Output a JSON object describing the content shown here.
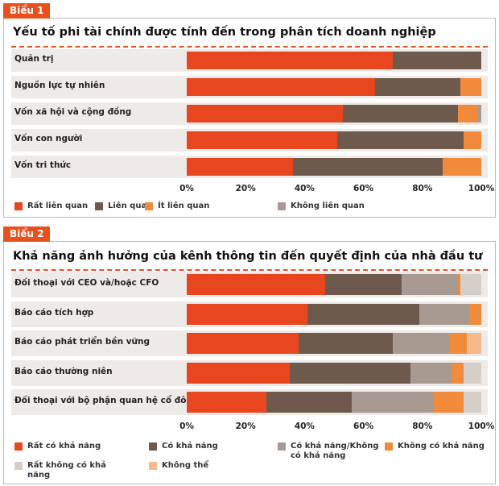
{
  "chart_data": [
    {
      "type": "bar",
      "stacked": true,
      "orientation": "horizontal",
      "badge": "Biểu 1",
      "title": "Yếu tố phi tài chính được tính đến trong phân tích doanh nghiệp",
      "categories": [
        "Quản trị",
        "Nguồn lực tự nhiên",
        "Vốn xã hội và cộng đồng",
        "Vốn con người",
        "Vốn tri thức"
      ],
      "series": [
        {
          "name": "Rất liên quan",
          "color": "#e8461e",
          "values": [
            70,
            64,
            53,
            51,
            36
          ]
        },
        {
          "name": "Liên quan",
          "color": "#6e5a4d",
          "values": [
            30,
            29,
            39,
            43,
            51
          ]
        },
        {
          "name": "Ít liên quan",
          "color": "#f28a3c",
          "values": [
            0,
            7,
            7,
            6,
            13
          ]
        },
        {
          "name": "Không liên quan",
          "color": "#a99a91",
          "values": [
            0,
            0,
            1,
            0,
            0
          ]
        }
      ],
      "xlim": [
        0,
        100
      ],
      "xticks": [
        {
          "value": 0,
          "label": "0%"
        },
        {
          "value": 20,
          "label": "20%"
        },
        {
          "value": 40,
          "label": "40%"
        },
        {
          "value": 60,
          "label": "60%"
        },
        {
          "value": 80,
          "label": "80%"
        },
        {
          "value": 100,
          "label": "100%"
        }
      ]
    },
    {
      "type": "bar",
      "stacked": true,
      "orientation": "horizontal",
      "badge": "Biểu 2",
      "title": "Khả năng ảnh hưởng của kênh thông tin đến quyết định của nhà đầu tư",
      "categories": [
        "Đối thoại với CEO và/hoặc CFO",
        "Báo cáo tích hợp",
        "Báo cáo phát triển bền vững",
        "Báo cáo thường niên",
        "Đối thoại với bộ phận quan hệ cổ đông"
      ],
      "series": [
        {
          "name": "Rất có khả năng",
          "color": "#e8461e",
          "values": [
            47,
            41,
            38,
            35,
            27
          ]
        },
        {
          "name": "Có khả năng",
          "color": "#6e5a4d",
          "values": [
            26,
            38,
            32,
            41,
            29
          ]
        },
        {
          "name": "Có khả năng/Không có khả năng",
          "color": "#a99a91",
          "values": [
            19,
            17,
            19,
            14,
            28
          ]
        },
        {
          "name": "Không có khả năng",
          "color": "#f28a3c",
          "values": [
            1,
            4,
            6,
            4,
            10
          ]
        },
        {
          "name": "Rất không có khả năng",
          "color": "#d6cec8",
          "values": [
            7,
            0,
            0,
            6,
            6
          ]
        },
        {
          "name": "Không thể",
          "color": "#f7b98c",
          "values": [
            0,
            0,
            5,
            0,
            0
          ]
        }
      ],
      "xlim": [
        0,
        100
      ],
      "xticks": [
        {
          "value": 0,
          "label": "0%"
        },
        {
          "value": 20,
          "label": "20%"
        },
        {
          "value": 40,
          "label": "40%"
        },
        {
          "value": 60,
          "label": "60%"
        },
        {
          "value": 80,
          "label": "80%"
        },
        {
          "value": 100,
          "label": "100%"
        }
      ]
    }
  ]
}
